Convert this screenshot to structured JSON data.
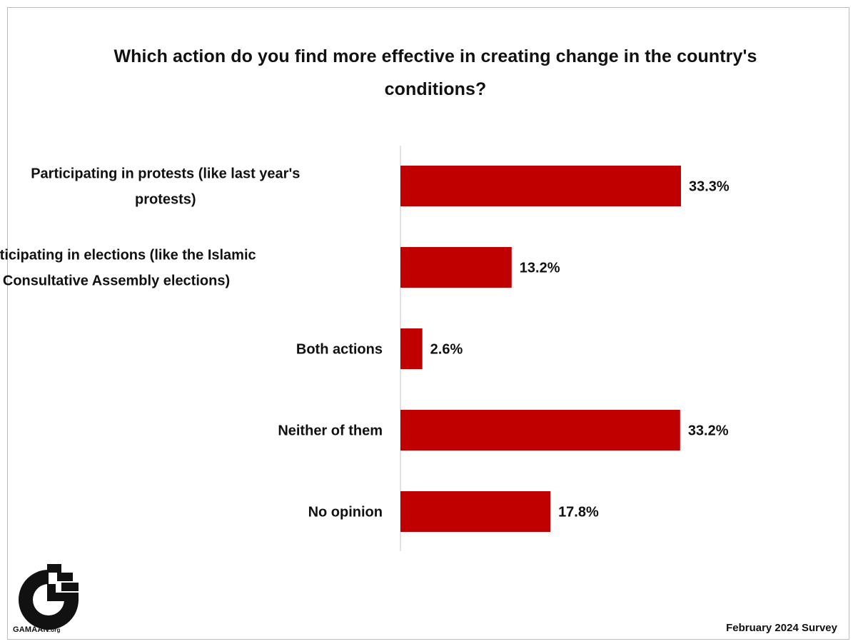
{
  "chart_data": {
    "type": "bar",
    "orientation": "horizontal",
    "title": "Which action do you find more effective in creating change in the country's conditions?",
    "categories": [
      [
        "Participating in protests (like last year's",
        "protests)"
      ],
      [
        "Participating in elections (like the Islamic",
        "Consultative Assembly elections)"
      ],
      [
        "Both actions"
      ],
      [
        "Neither of them"
      ],
      [
        "No opinion"
      ]
    ],
    "values": [
      33.3,
      13.2,
      2.6,
      33.2,
      17.8
    ],
    "value_labels": [
      "33.3%",
      "13.2%",
      "2.6%",
      "33.2%",
      "17.8%"
    ],
    "xlim": [
      0,
      40
    ],
    "grid": false,
    "bar_color": "#C00000"
  },
  "footer": {
    "survey": "February 2024 Survey"
  },
  "logo": {
    "name": "GAMAAN",
    "suffix": ".org"
  }
}
